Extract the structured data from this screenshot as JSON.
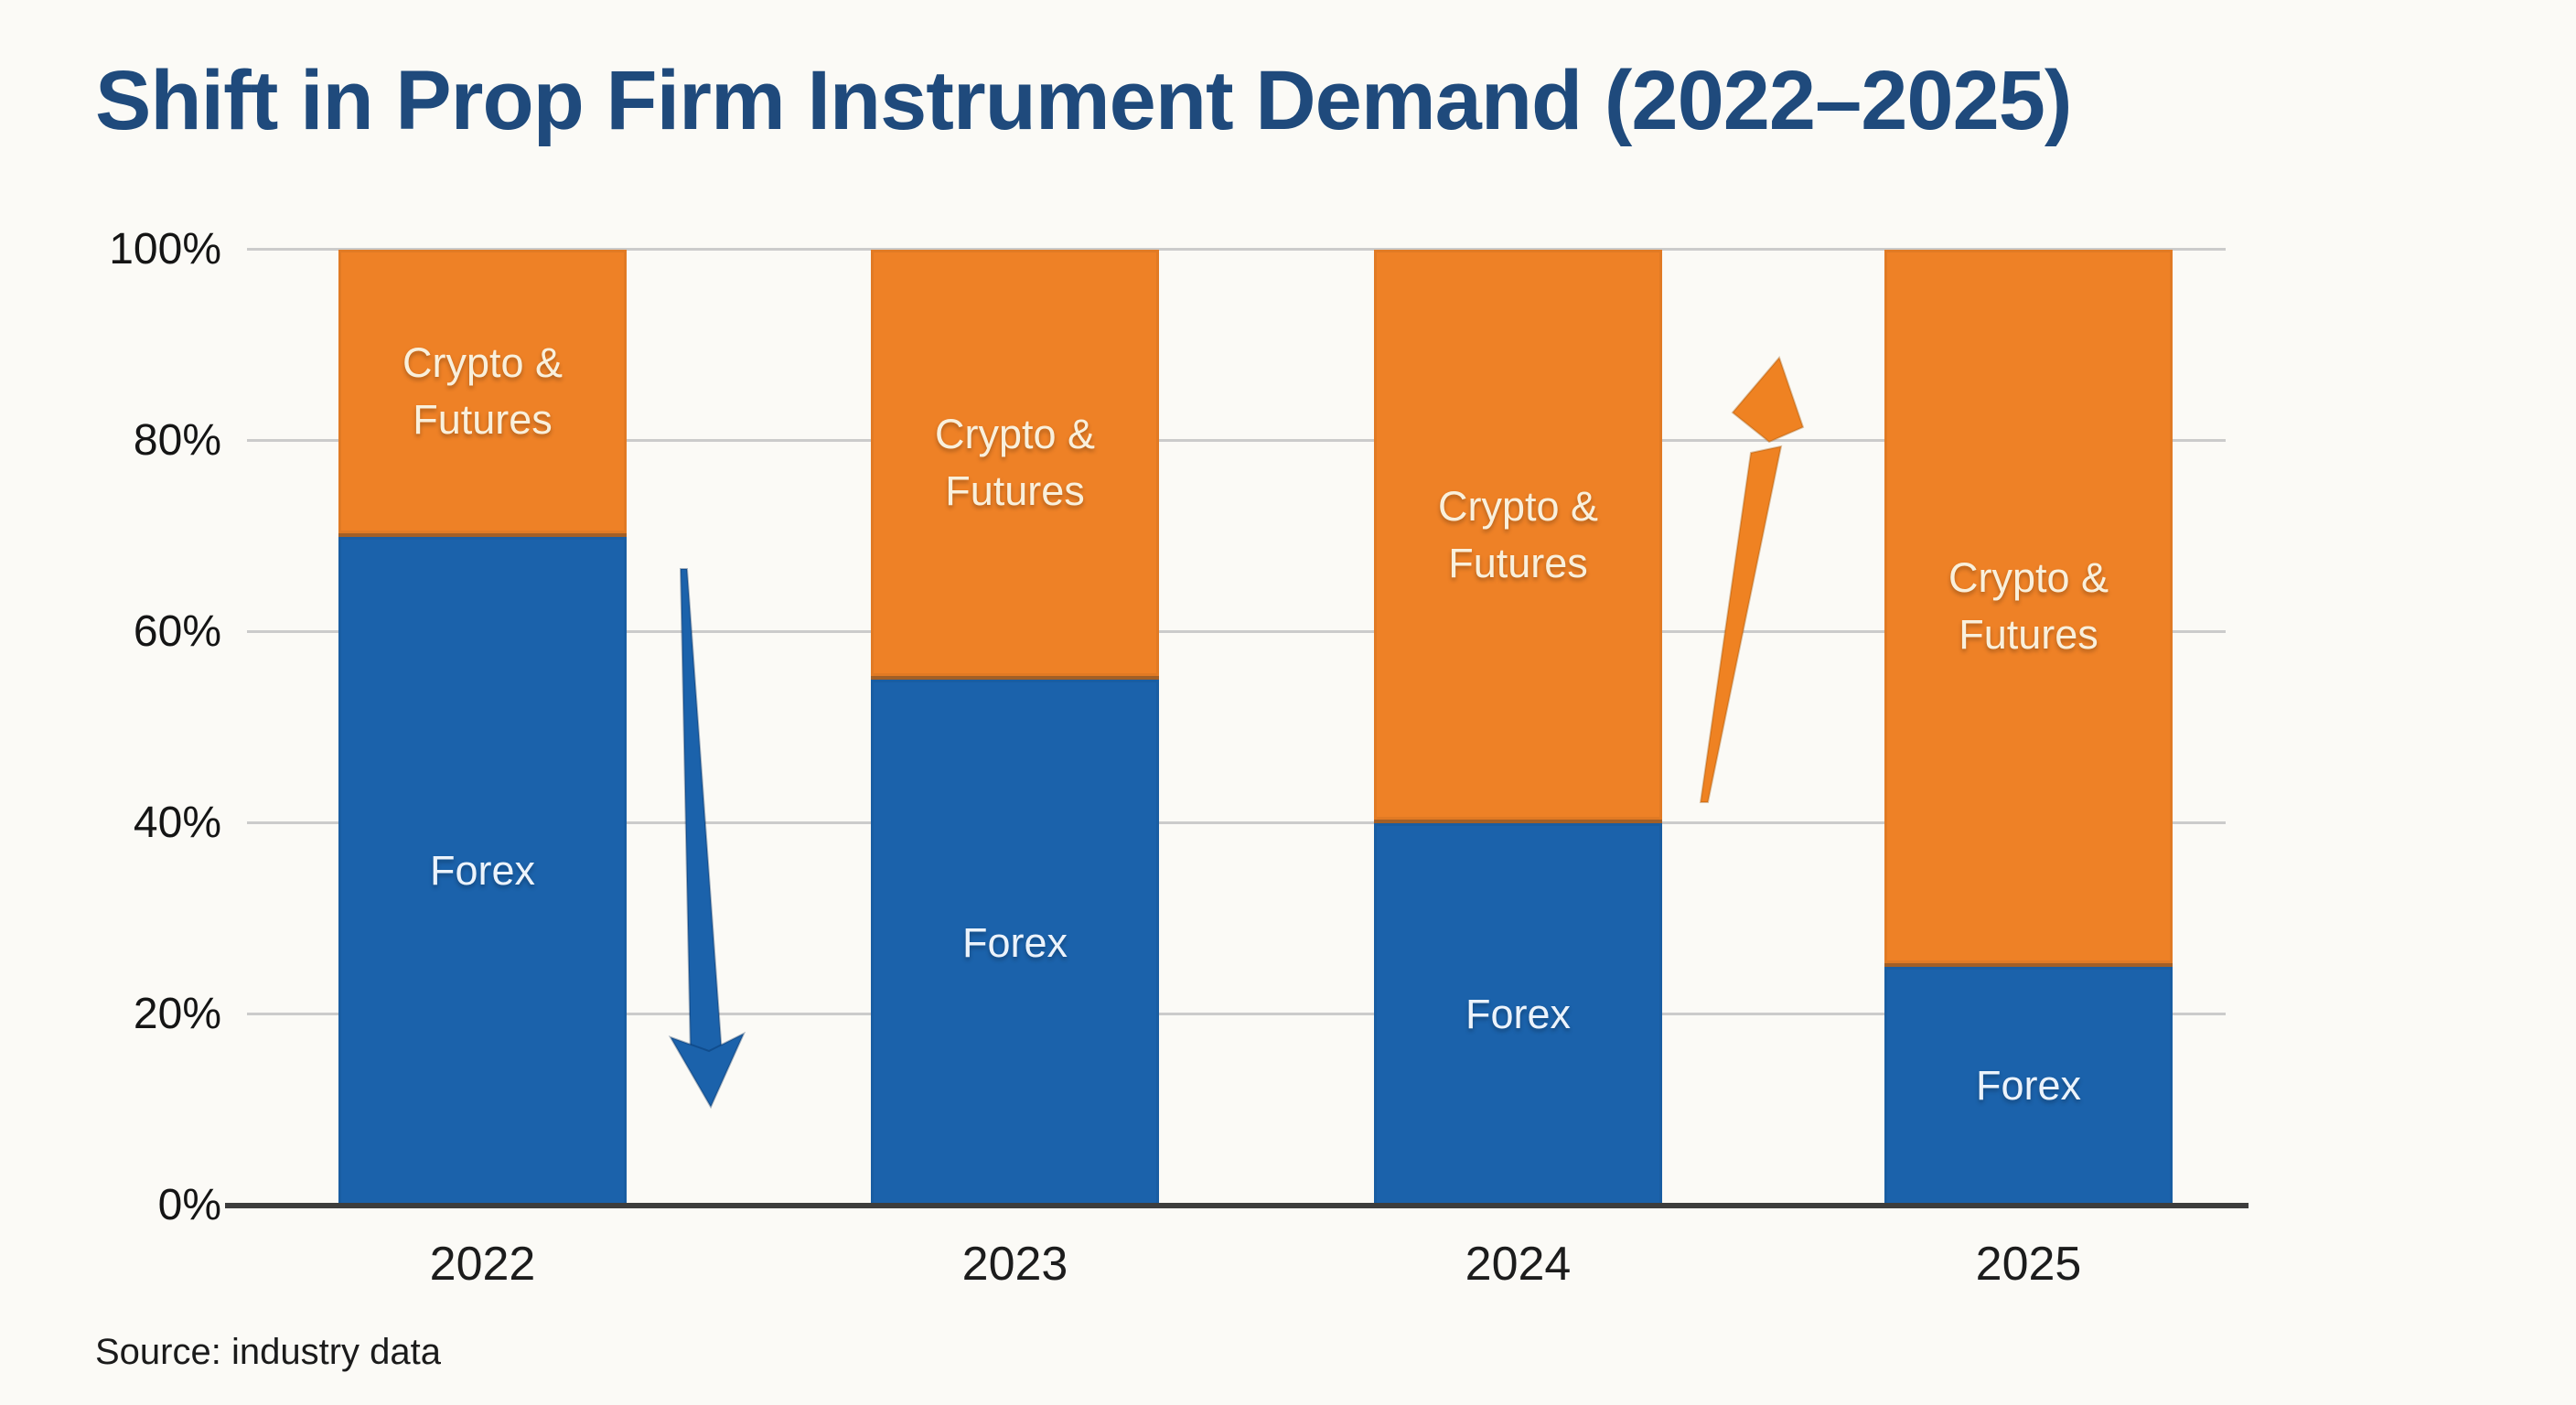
{
  "title": "Shift in Prop Firm Instrument Demand (2022–2025)",
  "source_note": "Source: industry data",
  "colors": {
    "background": "#fbfaf6",
    "title": "#1f4a7c",
    "forex": "#1b62ab",
    "crypto": "#ee8126",
    "gridline": "#cbcbcb",
    "axis_line": "#3d3d3d",
    "tick_text": "#151515",
    "year_text": "#1c1c1c",
    "source_text": "#1b1b1b",
    "label_on_orange": "#f9f0dc",
    "label_on_blue": "#ecf3fb",
    "arrow_down": "#1b62ab",
    "arrow_up": "#ef8222"
  },
  "segment_labels": {
    "crypto_lines": [
      "Crypto &",
      "Futures"
    ],
    "forex_lines": [
      "Forex"
    ]
  },
  "chart_data": {
    "type": "bar",
    "stacked": true,
    "title": "Shift in Prop Firm Instrument Demand (2022–2025)",
    "categories": [
      "2022",
      "2023",
      "2024",
      "2025"
    ],
    "series": [
      {
        "name": "Forex",
        "color": "#1b62ab",
        "values": [
          70,
          55,
          40,
          25
        ]
      },
      {
        "name": "Crypto & Futures",
        "color": "#ee8126",
        "values": [
          30,
          45,
          60,
          75
        ]
      }
    ],
    "value_unit": "%",
    "ylim": [
      0,
      100
    ],
    "y_ticks": [
      "0%",
      "20%",
      "40%",
      "60%",
      "80%",
      "100%"
    ],
    "grid": true,
    "legend": "none",
    "annotations": [
      {
        "type": "arrow",
        "direction": "down",
        "series": "Forex",
        "between": [
          "2022",
          "2023"
        ],
        "color": "#1b62ab"
      },
      {
        "type": "arrow",
        "direction": "up",
        "series": "Crypto & Futures",
        "between": [
          "2024",
          "2025"
        ],
        "color": "#ef8222"
      }
    ]
  }
}
